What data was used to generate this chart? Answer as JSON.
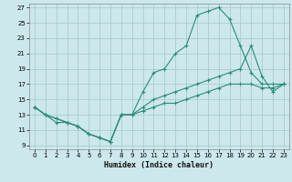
{
  "title": "",
  "xlabel": "Humidex (Indice chaleur)",
  "ylabel": "",
  "bg_color": "#cce8ec",
  "grid_color": "#aacccc",
  "line_color": "#2e8b7a",
  "xlim": [
    -0.5,
    23.5
  ],
  "ylim": [
    8.5,
    27.5
  ],
  "xticks": [
    0,
    1,
    2,
    3,
    4,
    5,
    6,
    7,
    8,
    9,
    10,
    11,
    12,
    13,
    14,
    15,
    16,
    17,
    18,
    19,
    20,
    21,
    22,
    23
  ],
  "yticks": [
    9,
    11,
    13,
    15,
    17,
    19,
    21,
    23,
    25,
    27
  ],
  "line1_x": [
    0,
    1,
    2,
    3,
    4,
    5,
    6,
    7,
    8,
    9,
    10,
    11,
    12,
    13,
    14,
    15,
    16,
    17,
    18,
    19,
    20,
    21,
    22,
    23
  ],
  "line1_y": [
    14,
    13,
    12,
    12,
    11.5,
    10.5,
    10,
    9.5,
    13,
    13,
    16,
    18.5,
    19,
    21,
    22,
    26,
    26.5,
    27,
    25.5,
    22,
    18.5,
    17,
    17,
    17
  ],
  "line2_x": [
    0,
    1,
    2,
    3,
    4,
    5,
    6,
    7,
    8,
    9,
    10,
    11,
    12,
    13,
    14,
    15,
    16,
    17,
    18,
    19,
    20,
    21,
    22,
    23
  ],
  "line2_y": [
    14,
    13,
    12.5,
    12,
    11.5,
    10.5,
    10,
    9.5,
    13,
    13,
    14,
    15,
    15.5,
    16,
    16.5,
    17,
    17.5,
    18,
    18.5,
    19,
    22,
    18,
    16,
    17
  ],
  "line3_x": [
    0,
    1,
    2,
    3,
    4,
    5,
    6,
    7,
    8,
    9,
    10,
    11,
    12,
    13,
    14,
    15,
    16,
    17,
    18,
    19,
    20,
    21,
    22,
    23
  ],
  "line3_y": [
    14,
    13,
    12.5,
    12,
    11.5,
    10.5,
    10,
    9.5,
    13,
    13,
    13.5,
    14,
    14.5,
    14.5,
    15,
    15.5,
    16,
    16.5,
    17,
    17,
    17,
    16.5,
    16.5,
    17
  ],
  "xlabel_fontsize": 6,
  "tick_fontsize": 5,
  "linewidth": 0.8,
  "marker_size": 2.5
}
